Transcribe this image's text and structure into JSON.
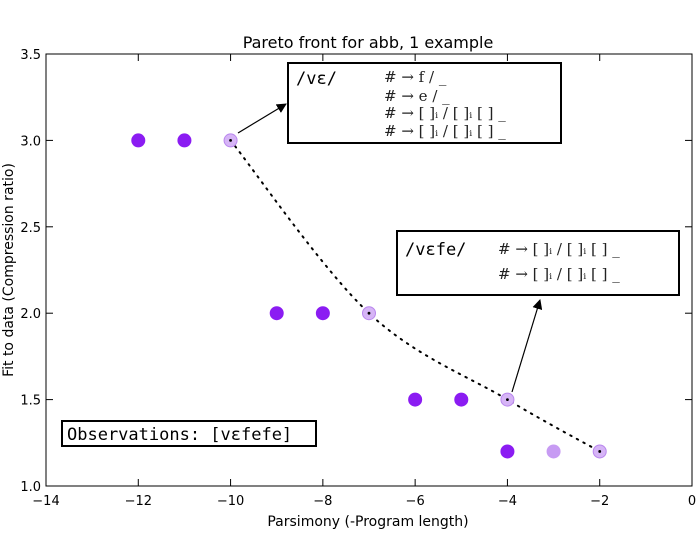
{
  "chart_data": {
    "type": "scatter",
    "title": "Pareto front for abb, 1 example",
    "xlabel": "Parsimony (-Program length)",
    "ylabel": "Fit to data (Compression ratio)",
    "xlim": [
      -14,
      0
    ],
    "ylim": [
      1.0,
      3.5
    ],
    "xticks": [
      -14,
      -12,
      -10,
      -8,
      -6,
      -4,
      -2,
      0
    ],
    "xtick_labels": [
      "−14",
      "−12",
      "−10",
      "−8",
      "−6",
      "−4",
      "−2",
      "0"
    ],
    "yticks": [
      1.0,
      1.5,
      2.0,
      2.5,
      3.0,
      3.5
    ],
    "ytick_labels": [
      "1.0",
      "1.5",
      "2.0",
      "2.5",
      "3.0",
      "3.5"
    ],
    "grid": false,
    "points": [
      {
        "x": -12,
        "y": 3.0,
        "style": "dominated"
      },
      {
        "x": -11,
        "y": 3.0,
        "style": "dominated"
      },
      {
        "x": -10,
        "y": 3.0,
        "style": "front"
      },
      {
        "x": -9,
        "y": 2.0,
        "style": "dominated"
      },
      {
        "x": -8,
        "y": 2.0,
        "style": "dominated"
      },
      {
        "x": -7,
        "y": 2.0,
        "style": "front"
      },
      {
        "x": -6,
        "y": 1.5,
        "style": "dominated"
      },
      {
        "x": -5,
        "y": 1.5,
        "style": "dominated"
      },
      {
        "x": -4,
        "y": 1.5,
        "style": "front"
      },
      {
        "x": -4,
        "y": 1.2,
        "style": "dominated"
      },
      {
        "x": -3,
        "y": 1.2,
        "style": "front-faded"
      },
      {
        "x": -2,
        "y": 1.2,
        "style": "front"
      }
    ],
    "front_curve": [
      [
        -10,
        3.0
      ],
      [
        -7,
        2.0
      ],
      [
        -4,
        1.5
      ],
      [
        -2,
        1.2
      ]
    ],
    "colors": {
      "dominated": "#8b1cf2",
      "front": "#d6b4f6",
      "front_faded": "#c79bf3",
      "curve": "#000000"
    },
    "annotations": [
      {
        "word": "/vɛ/",
        "rules": [
          "# → f / _",
          "# → e / _",
          "# → [ ]ᵢ / [ ]ᵢ [ ] _",
          "# → [ ]ᵢ / [ ]ᵢ [ ] _"
        ],
        "points_to": {
          "x": -10,
          "y": 3.0
        }
      },
      {
        "word": "/vɛfe/",
        "rules": [
          "# → [ ]ᵢ / [ ]ᵢ [ ] _",
          "# → [ ]ᵢ / [ ]ᵢ [ ] _"
        ],
        "points_to": {
          "x": -4,
          "y": 1.5
        }
      }
    ],
    "observations_label": "Observations: [vɛfefe]"
  }
}
